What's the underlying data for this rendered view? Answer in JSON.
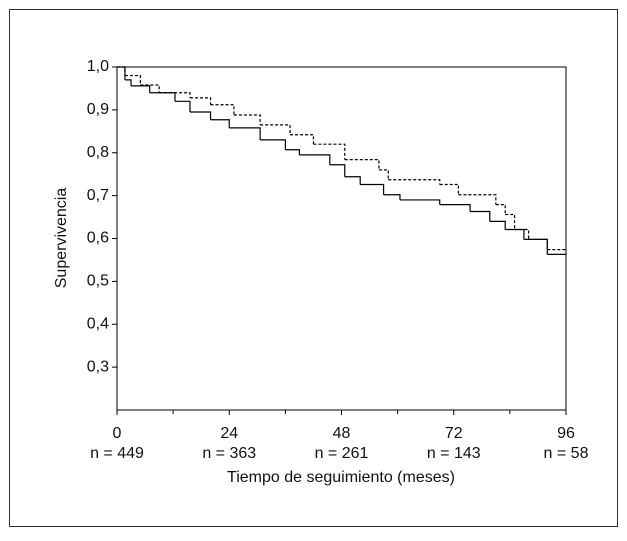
{
  "chart_data": {
    "type": "step",
    "y_label": "Supervivencia",
    "x_label": "Tiempo de seguimiento (meses)",
    "xlim": [
      0,
      96
    ],
    "xticks": [
      0,
      24,
      48,
      72,
      96
    ],
    "minor_xticks": [
      12,
      36,
      60,
      84
    ],
    "at_risk_labels": [
      "n = 449",
      "n = 363",
      "n = 261",
      "n = 143",
      "n = 58"
    ],
    "ylim": [
      0.2,
      1.0
    ],
    "yticks": [
      {
        "value": 1.0,
        "label": "1,0"
      },
      {
        "value": 0.9,
        "label": "0,9"
      },
      {
        "value": 0.8,
        "label": "0,8"
      },
      {
        "value": 0.7,
        "label": "0,7"
      },
      {
        "value": 0.6,
        "label": "0,6"
      },
      {
        "value": 0.5,
        "label": "0,5"
      },
      {
        "value": 0.4,
        "label": "0,4"
      },
      {
        "value": 0.3,
        "label": "0,3"
      }
    ],
    "series": [
      {
        "color": "#000000",
        "dash": "solid",
        "x": [
          0,
          1.7,
          3,
          7,
          12.4,
          15.6,
          20,
          24,
          30.6,
          36,
          39,
          45.5,
          48.7,
          52,
          57,
          60.5,
          69,
          75.5,
          79.7,
          83,
          87,
          92,
          96
        ],
        "values": [
          1.0,
          0.97,
          0.956,
          0.94,
          0.92,
          0.895,
          0.877,
          0.858,
          0.83,
          0.807,
          0.795,
          0.772,
          0.744,
          0.726,
          0.702,
          0.69,
          0.679,
          0.663,
          0.64,
          0.621,
          0.598,
          0.563,
          0.563
        ]
      },
      {
        "color": "#000000",
        "dash": "dashed",
        "x": [
          0,
          1.7,
          5,
          9,
          15.6,
          20,
          25,
          30.6,
          37,
          42,
          48.7,
          56,
          58,
          69,
          73,
          81,
          83,
          85,
          88,
          92,
          96
        ],
        "values": [
          1.0,
          0.98,
          0.958,
          0.94,
          0.928,
          0.912,
          0.888,
          0.865,
          0.842,
          0.82,
          0.784,
          0.76,
          0.737,
          0.726,
          0.702,
          0.679,
          0.656,
          0.621,
          0.598,
          0.574,
          0.574
        ]
      }
    ]
  }
}
